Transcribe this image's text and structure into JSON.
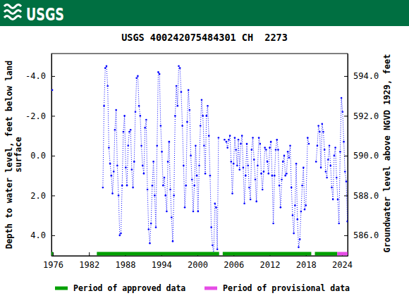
{
  "chart_data": {
    "type": "line",
    "title": "USGS 400242075484301 CH  2273",
    "annotations": [
      "USGS"
    ],
    "ylabel": [
      "Depth to water level, feet below land",
      "surface"
    ],
    "y2label": "Groundwater level above NGVD 1929, feet",
    "xlim": [
      1975.77,
      2024.94
    ],
    "xticks": [
      1976,
      1982,
      1988,
      1994,
      2000,
      2006,
      2012,
      2018,
      2024
    ],
    "ylim": [
      5.03,
      -5.13
    ],
    "yticks": [
      {
        "value": -4,
        "label": "-4.0"
      },
      {
        "value": -2,
        "label": "-2.0"
      },
      {
        "value": 0,
        "label": "0.0"
      },
      {
        "value": 2,
        "label": "2.0"
      },
      {
        "value": 4,
        "label": "4.0"
      }
    ],
    "y2lim": [
      584.97,
      595.13
    ],
    "y2ticks": [
      {
        "value": 586,
        "label": "586.0"
      },
      {
        "value": 588,
        "label": "588.0"
      },
      {
        "value": 590,
        "label": "590.0"
      },
      {
        "value": 592,
        "label": "592.0"
      },
      {
        "value": 594,
        "label": "594.0"
      }
    ],
    "x": [
      1975.9,
      1980.0,
      1984.3,
      1984.5,
      1984.7,
      1984.9,
      1985.1,
      1985.3,
      1985.5,
      1985.7,
      1985.9,
      1986.1,
      1986.3,
      1986.5,
      1986.7,
      1986.9,
      1987.1,
      1987.3,
      1987.5,
      1987.7,
      1987.9,
      1988.1,
      1988.3,
      1988.5,
      1988.7,
      1988.9,
      1989.1,
      1989.3,
      1989.5,
      1989.7,
      1989.9,
      1990.1,
      1990.3,
      1990.5,
      1990.7,
      1990.9,
      1991.1,
      1991.3,
      1991.5,
      1991.7,
      1991.9,
      1992.1,
      1992.3,
      1992.5,
      1992.7,
      1992.9,
      1993.1,
      1993.3,
      1993.5,
      1993.7,
      1993.9,
      1994.1,
      1994.3,
      1994.5,
      1994.7,
      1994.9,
      1995.1,
      1995.3,
      1995.5,
      1995.7,
      1995.9,
      1996.1,
      1996.3,
      1996.5,
      1996.7,
      1996.9,
      1997.1,
      1997.3,
      1997.5,
      1997.7,
      1997.9,
      1998.1,
      1998.3,
      1998.5,
      1998.7,
      1998.9,
      1999.1,
      1999.3,
      1999.5,
      1999.7,
      1999.9,
      2000.1,
      2000.3,
      2000.5,
      2000.7,
      2000.9,
      2001.1,
      2001.3,
      2001.5,
      2001.7,
      2001.9,
      2002.1,
      2002.3,
      2002.5,
      2002.7,
      2002.9,
      2003.1,
      2003.3,
      2003.5,
      2004.0,
      2004.5,
      2004.8,
      2005.0,
      2005.2,
      2005.4,
      2005.6,
      2005.8,
      2006.0,
      2006.2,
      2006.4,
      2006.6,
      2006.8,
      2007.0,
      2007.2,
      2007.4,
      2007.6,
      2007.8,
      2008.0,
      2008.2,
      2008.4,
      2008.6,
      2008.8,
      2009.0,
      2009.2,
      2009.4,
      2009.6,
      2009.8,
      2010.0,
      2010.2,
      2010.4,
      2010.6,
      2010.8,
      2011.0,
      2011.2,
      2011.4,
      2011.6,
      2011.8,
      2012.0,
      2012.2,
      2012.4,
      2012.6,
      2012.8,
      2013.0,
      2013.2,
      2013.4,
      2013.6,
      2013.8,
      2014.0,
      2014.2,
      2014.4,
      2014.6,
      2014.8,
      2015.0,
      2015.2,
      2015.4,
      2015.6,
      2015.8,
      2016.0,
      2016.2,
      2016.4,
      2016.6,
      2016.8,
      2017.0,
      2017.2,
      2017.4,
      2017.6,
      2017.8,
      2018.0,
      2018.3,
      2018.5,
      2019.1,
      2019.7,
      2019.9,
      2020.1,
      2020.3,
      2020.5,
      2020.7,
      2020.9,
      2021.1,
      2021.3,
      2021.5,
      2021.7,
      2021.9,
      2022.1,
      2022.3,
      2022.5,
      2022.7,
      2022.9,
      2023.1,
      2023.3,
      2023.5,
      2023.7,
      2023.9,
      2024.1,
      2024.3,
      2024.5,
      2024.7,
      2024.9
    ],
    "series": [
      {
        "color": "#0000ff",
        "marker": "circle",
        "line_style": "dotted",
        "values": [
          -3.3,
          null,
          1.6,
          -2.5,
          -4.4,
          -4.5,
          -3.5,
          -0.4,
          0.4,
          1.0,
          1.9,
          0.8,
          -1.3,
          -2.3,
          0.5,
          2.0,
          4.0,
          3.9,
          1.5,
          -1.2,
          -2.0,
          0.6,
          1.5,
          -0.5,
          -1.2,
          -1.3,
          0.7,
          1.6,
          0.3,
          -2.2,
          -3.9,
          -4.0,
          -2.5,
          -2.0,
          -0.5,
          0.5,
          0.9,
          -1.4,
          -1.8,
          1.7,
          3.7,
          4.4,
          3.4,
          1.5,
          0.3,
          2.0,
          3.6,
          -0.5,
          -4.2,
          -4.1,
          -1.5,
          -0.2,
          1.5,
          1.1,
          2.0,
          2.8,
          0.3,
          -0.7,
          1.7,
          3.1,
          4.3,
          2.0,
          -2.0,
          -3.5,
          -2.5,
          -4.5,
          -4.4,
          -3.2,
          -1.5,
          0.5,
          2.6,
          1.5,
          -1.7,
          -3.3,
          -2.3,
          0.0,
          1.2,
          2.8,
          1.5,
          -0.5,
          1.0,
          2.8,
          0.5,
          -1.5,
          -2.8,
          -2.0,
          -0.5,
          0.9,
          -2.0,
          -2.5,
          -1.0,
          1.0,
          3.6,
          4.5,
          4.9,
          2.4,
          2.6,
          4.7,
          -0.9,
          null,
          -0.8,
          -0.7,
          -0.4,
          -0.8,
          -1.0,
          0.3,
          1.9,
          0.4,
          -0.9,
          -0.3,
          0.5,
          -0.8,
          0.7,
          -0.6,
          -1.0,
          0.6,
          2.4,
          1.0,
          -0.6,
          0.5,
          1.6,
          2.2,
          -0.3,
          -0.9,
          0.2,
          1.2,
          2.3,
          0.5,
          -0.9,
          -0.6,
          0.9,
          1.7,
          0.8,
          -0.4,
          -0.3,
          0.3,
          0.9,
          -0.4,
          -0.7,
          1.0,
          3.4,
          1.0,
          -0.3,
          -0.8,
          -0.3,
          1.5,
          2.6,
          1.2,
          0.3,
          0.0,
          1.0,
          0.9,
          -0.2,
          0.1,
          -0.5,
          1.6,
          3.0,
          3.9,
          2.5,
          0.4,
          3.2,
          4.6,
          4.2,
          2.8,
          1.5,
          0.6,
          2.7,
          2.5,
          -0.9,
          -0.6,
          null,
          0.3,
          -0.5,
          -1.5,
          -1.2,
          0.6,
          -1.6,
          -1.2,
          -0.3,
          0.8,
          1.1,
          0.2,
          -0.5,
          0.5,
          1.6,
          2.2,
          0.0,
          -0.4,
          1.1,
          2.2,
          3.4,
          -0.2,
          -2.9,
          -2.2,
          -0.7,
          0.8,
          1.3,
          3.3
        ]
      }
    ],
    "periods": [
      {
        "name": "Period of approved data",
        "color": "#00a000",
        "ranges": [
          [
            1975.77,
            1976.0
          ],
          [
            1983.3,
            2003.6
          ],
          [
            2004.2,
            2018.9
          ],
          [
            2019.5,
            2023.2
          ]
        ]
      },
      {
        "name": "Period of provisional data",
        "color": "#e64ce6",
        "ranges": [
          [
            2023.2,
            2024.94
          ]
        ]
      }
    ]
  }
}
